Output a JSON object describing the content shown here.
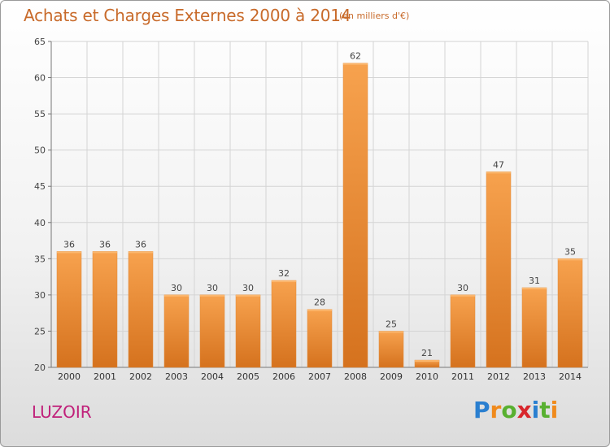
{
  "title": "Achats et Charges Externes 2000 à 2014",
  "subtitle": "(en milliers d'€)",
  "commune": "LUZOIR",
  "logo": {
    "letters": [
      "P",
      "r",
      "o",
      "x",
      "i",
      "t",
      "i"
    ],
    "colors": [
      "#2a7fd0",
      "#f08a1c",
      "#58b030",
      "#d8262c",
      "#2a7fd0",
      "#58b030",
      "#f08a1c"
    ]
  },
  "chart_data": {
    "type": "bar",
    "categories": [
      "2000",
      "2001",
      "2002",
      "2003",
      "2004",
      "2005",
      "2006",
      "2007",
      "2008",
      "2009",
      "2010",
      "2011",
      "2012",
      "2013",
      "2014"
    ],
    "values": [
      36,
      36,
      36,
      30,
      30,
      30,
      32,
      28,
      62,
      25,
      21,
      30,
      47,
      31,
      35
    ],
    "ylim": [
      20,
      65
    ],
    "yticks": [
      20,
      25,
      30,
      35,
      40,
      45,
      50,
      55,
      60,
      65
    ],
    "grid": true,
    "bar_color": "#f2963c"
  }
}
